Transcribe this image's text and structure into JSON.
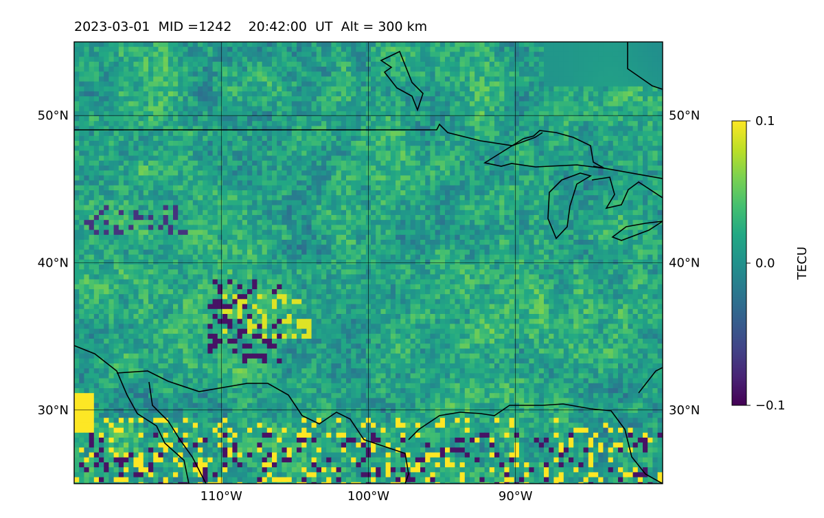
{
  "chart_title": "2023-03-01  MID =1242    20:42:00  UT  Alt = 300 km",
  "chart_data": {
    "type": "heatmap",
    "title": "2023-03-01  MID =1242    20:42:00  UT  Alt = 300 km",
    "projection": "longitude-latitude map with coastlines, grid on",
    "lon_range": [
      -120,
      -80
    ],
    "lat_range": [
      25,
      55
    ],
    "x_ticks": [
      -110,
      -100,
      -90
    ],
    "x_tick_labels": [
      "110°W",
      "100°W",
      "90°W"
    ],
    "y_ticks": [
      30,
      40,
      50
    ],
    "y_tick_labels": [
      "30°N",
      "40°N",
      "50°N"
    ],
    "grid": true,
    "colorbar": {
      "label": "TECU",
      "colormap": "viridis",
      "vmin": -0.1,
      "vmax": 0.1,
      "ticks": [
        0.1,
        0.0,
        -0.1
      ],
      "tick_labels": [
        "0.1",
        "0.0",
        "−0.1"
      ]
    },
    "value_range": [
      -0.1,
      0.1
    ],
    "field_description_values": "mostly near 0 to +0.05 TECU, with scattered negative (~-0.1) patches around 33-38N 110-107W and along 25-28N, and positive (~+0.1) patches near 29N 119W and 26-28N 110-90W"
  }
}
